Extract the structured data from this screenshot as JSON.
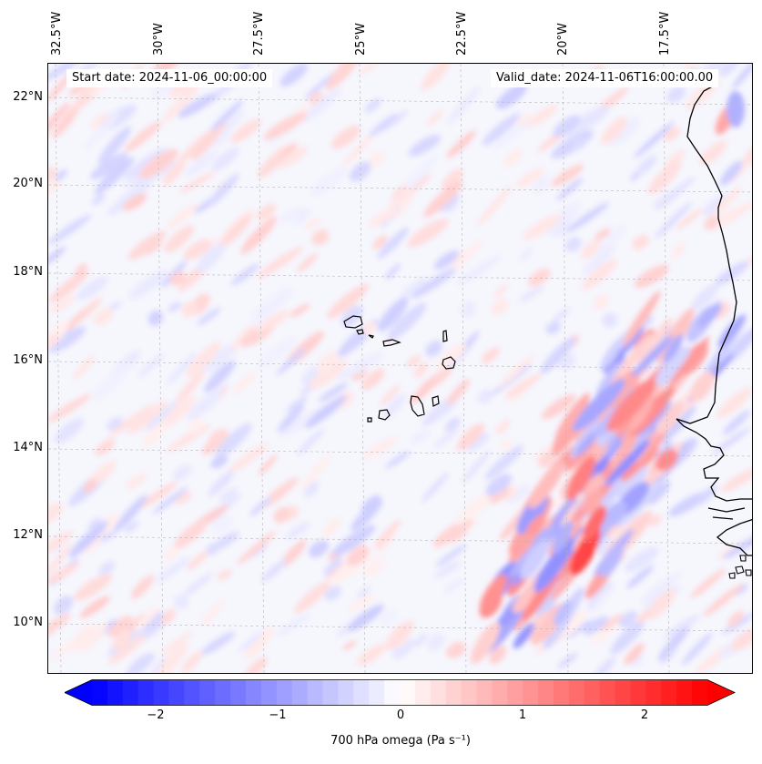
{
  "map": {
    "start_date": "Start date: 2024-11-06_00:00:00",
    "valid_date": "Valid_date: 2024-11-06T16:00:00.00",
    "longitude_labels": [
      "32.5°W",
      "30°W",
      "27.5°W",
      "25°W",
      "22.5°W",
      "20°W",
      "17.5°W"
    ],
    "latitude_labels": [
      "22°N",
      "20°N",
      "18°N",
      "16°N",
      "14°N",
      "12°N",
      "10°N"
    ],
    "extent": {
      "lon_min": -33.0,
      "lon_max": -15.5,
      "lat_min": 8.8,
      "lat_max": 22.8
    },
    "colors": {
      "low": "#0000ff",
      "mid": "#ffffff",
      "high": "#ff0000",
      "coastline": "#000000"
    }
  },
  "colorbar": {
    "label": "700 hPa omega (Pa s⁻¹)",
    "ticks": [
      "−2",
      "−1",
      "0",
      "1",
      "2"
    ],
    "range": [
      -2.6,
      2.6
    ],
    "extend": "both",
    "colormap": "bwr"
  }
}
